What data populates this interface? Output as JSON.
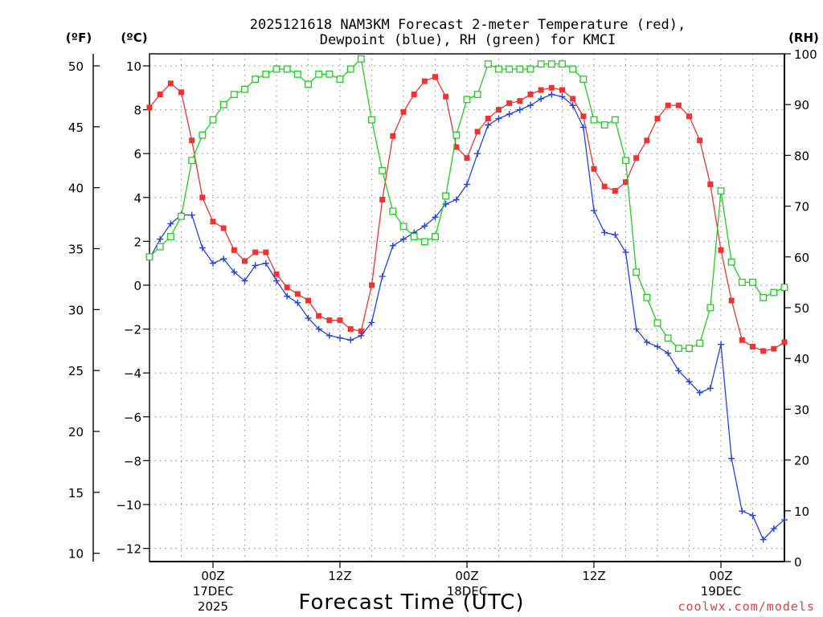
{
  "chart_data": {
    "type": "line",
    "title_line1": "2025121618 NAM3KM Forecast 2-meter Temperature (red),",
    "title_line2": "Dewpoint (blue), RH (green) for KMCI",
    "xlabel": "Forecast Time (UTC)",
    "credit": "coolwx.com/models",
    "units": {
      "f": "(ºF)",
      "c": "(ºC)",
      "rh": "(RH)"
    },
    "xlim_hours": [
      -3,
      57
    ],
    "ylim_c": [
      -12.5,
      10.5
    ],
    "ylim_rh": [
      0,
      100
    ],
    "f_ticks": [
      "10",
      "15",
      "20",
      "25",
      "30",
      "35",
      "40",
      "45",
      "50"
    ],
    "c_ticks": [
      "−12",
      "−10",
      "−8",
      "−6",
      "−4",
      "−2",
      "0",
      "2",
      "4",
      "6",
      "8",
      "10"
    ],
    "rh_ticks": [
      "0",
      "10",
      "20",
      "30",
      "40",
      "50",
      "60",
      "70",
      "80",
      "90",
      "100"
    ],
    "x_ticks": [
      {
        "hour": 3,
        "label": "00Z",
        "sub1": "17DEC",
        "sub2": "2025"
      },
      {
        "hour": 15,
        "label": "12Z",
        "sub1": "",
        "sub2": ""
      },
      {
        "hour": 27,
        "label": "00Z",
        "sub1": "18DEC",
        "sub2": ""
      },
      {
        "hour": 39,
        "label": "12Z",
        "sub1": "",
        "sub2": ""
      },
      {
        "hour": 51,
        "label": "00Z",
        "sub1": "19DEC",
        "sub2": ""
      }
    ],
    "colors": {
      "temperature": "#ee3333",
      "dewpoint": "#2244dd",
      "rh": "#22cc22",
      "credit": "#e04040"
    },
    "series": [
      {
        "name": "Temperature (°C)",
        "axis": "c",
        "marker": "filled-square",
        "values": [
          8.1,
          8.7,
          9.2,
          8.8,
          6.6,
          4.0,
          2.9,
          2.6,
          1.6,
          1.1,
          1.5,
          1.5,
          0.5,
          -0.1,
          -0.4,
          -0.7,
          -1.4,
          -1.6,
          -1.6,
          -2.0,
          -2.1,
          0.0,
          3.9,
          6.8,
          7.9,
          8.7,
          9.3,
          9.5,
          8.6,
          6.3,
          5.8,
          7.0,
          7.6,
          8.0,
          8.3,
          8.4,
          8.7,
          8.9,
          9.0,
          8.9,
          8.5,
          7.7,
          5.3,
          4.5,
          4.3,
          4.7,
          5.8,
          6.6,
          7.6,
          8.2,
          8.2,
          7.7,
          6.6,
          4.6,
          1.6,
          -0.7,
          -2.5,
          -2.8,
          -3.0,
          -2.9,
          -2.6
        ]
      },
      {
        "name": "Dewpoint (°C)",
        "axis": "c",
        "marker": "plus",
        "values": [
          1.2,
          2.1,
          2.8,
          3.2,
          3.2,
          1.7,
          1.0,
          1.2,
          0.6,
          0.2,
          0.9,
          1.0,
          0.2,
          -0.5,
          -0.8,
          -1.5,
          -2.0,
          -2.3,
          -2.4,
          -2.5,
          -2.3,
          -1.7,
          0.4,
          1.8,
          2.1,
          2.4,
          2.7,
          3.1,
          3.7,
          3.9,
          4.6,
          6.0,
          7.3,
          7.6,
          7.8,
          8.0,
          8.2,
          8.5,
          8.7,
          8.6,
          8.2,
          7.2,
          3.4,
          2.4,
          2.3,
          1.5,
          -2.0,
          -2.6,
          -2.8,
          -3.1,
          -3.9,
          -4.4,
          -4.9,
          -4.7,
          -2.7,
          -7.9,
          -10.3,
          -10.5,
          -11.6,
          -11.1,
          -10.7
        ]
      },
      {
        "name": "RH (%)",
        "axis": "rh",
        "marker": "open-square",
        "values": [
          60,
          62,
          64,
          68,
          79,
          84,
          87,
          90,
          92,
          93,
          95,
          96,
          97,
          97,
          96,
          94,
          96,
          96,
          95,
          97,
          99,
          87,
          77,
          69,
          66,
          64,
          63,
          64,
          72,
          84,
          91,
          92,
          98,
          97,
          97,
          97,
          97,
          98,
          98,
          98,
          97,
          95,
          87,
          86,
          87,
          79,
          57,
          52,
          47,
          44,
          42,
          42,
          43,
          50,
          73,
          59,
          55,
          55,
          52,
          53,
          54
        ]
      }
    ]
  }
}
